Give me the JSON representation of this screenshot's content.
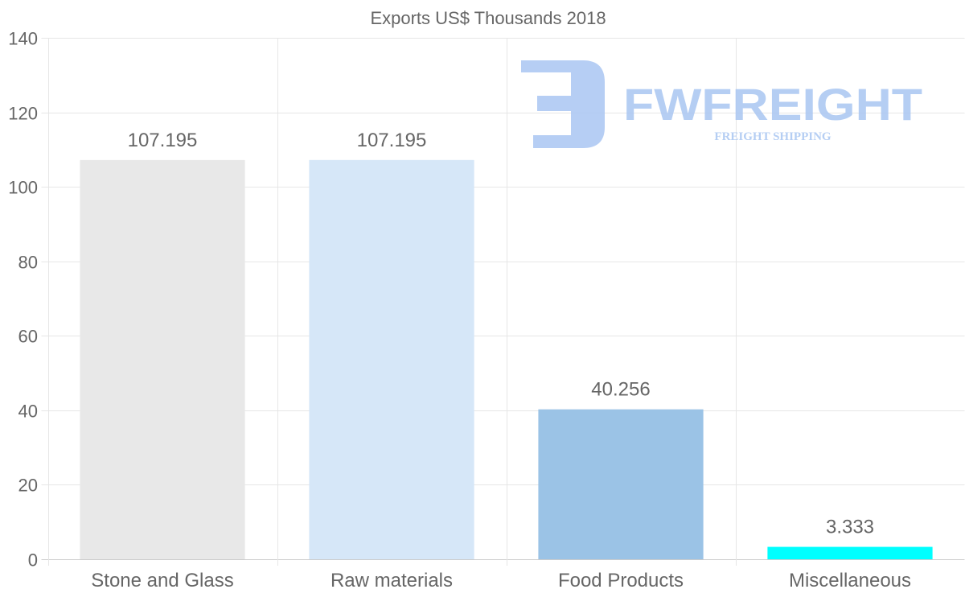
{
  "chart_data": {
    "type": "bar",
    "title": "Exports US$ Thousands 2018",
    "xlabel": "",
    "ylabel": "",
    "categories": [
      "Stone and Glass",
      "Raw materials",
      "Food Products",
      "Miscellaneous"
    ],
    "values": [
      107.195,
      107.195,
      40.256,
      3.333
    ],
    "data_labels": [
      "107.195",
      "107.195",
      "40.256",
      "3.333"
    ],
    "colors": [
      "#e8e8e8",
      "#d6e7f8",
      "#9bc3e6",
      "#00ffff"
    ],
    "ylim": [
      0,
      140
    ],
    "yticks": [
      0,
      20,
      40,
      60,
      80,
      100,
      120,
      140
    ],
    "grid": true,
    "legend": "none"
  },
  "watermark": {
    "brand": "FWFREIGHT",
    "tagline": "FREIGHT SHIPPING",
    "color": "#a9c6f2"
  }
}
